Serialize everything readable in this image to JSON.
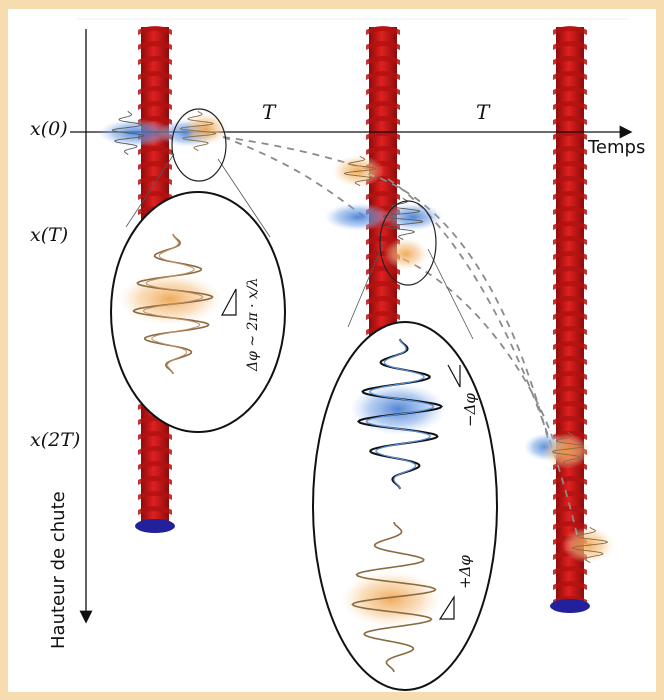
{
  "labels": {
    "x0": "x(0)",
    "xT": "x(T)",
    "x2T": "x(2T)",
    "T1": "T",
    "T2": "T",
    "temps": "Temps",
    "hauteur": "Hauteur de chute"
  },
  "formulas": {
    "left_phase": "Δφ ~ 2π · x/λ",
    "minus_phase": "−Δφ",
    "plus_phase": "+Δφ"
  },
  "colors": {
    "frame": "#f6dcae",
    "beam": "#d41a1a",
    "beam_shade": "#8e0b0b",
    "base": "#22209a",
    "blue_packet": "#5a8fd8",
    "orange_packet": "#f0b060",
    "brown_wave": "#8a6a40",
    "dashed_path": "#8a8a8a"
  }
}
